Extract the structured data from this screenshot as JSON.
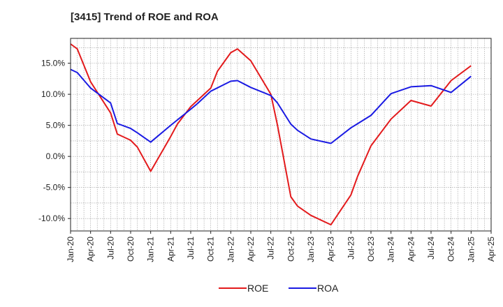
{
  "chart_data": {
    "type": "line",
    "title": "[3415]  Trend of ROE and ROA",
    "xlabel": "",
    "ylabel": "",
    "x": [
      "Jan-20",
      "Feb-20",
      "Mar-20",
      "Apr-20",
      "May-20",
      "Jun-20",
      "Jul-20",
      "Aug-20",
      "Sep-20",
      "Oct-20",
      "Nov-20",
      "Dec-20",
      "Jan-21",
      "Feb-21",
      "Mar-21",
      "Apr-21",
      "May-21",
      "Jun-21",
      "Jul-21",
      "Aug-21",
      "Sep-21",
      "Oct-21",
      "Nov-21",
      "Dec-21",
      "Jan-22",
      "Feb-22",
      "Mar-22",
      "Apr-22",
      "May-22",
      "Jun-22",
      "Jul-22",
      "Aug-22",
      "Sep-22",
      "Oct-22",
      "Nov-22",
      "Dec-22",
      "Jan-23",
      "Feb-23",
      "Mar-23",
      "Apr-23",
      "May-23",
      "Jun-23",
      "Jul-23",
      "Aug-23",
      "Sep-23",
      "Oct-23",
      "Nov-23",
      "Dec-23",
      "Jan-24",
      "Feb-24",
      "Mar-24",
      "Apr-24",
      "May-24",
      "Jun-24",
      "Jul-24",
      "Aug-24",
      "Sep-24",
      "Oct-24",
      "Nov-24",
      "Dec-24",
      "Jan-25"
    ],
    "x_tick_labels": [
      "Jan-20",
      "Apr-20",
      "Jul-20",
      "Oct-20",
      "Jan-21",
      "Apr-21",
      "Jul-21",
      "Oct-21",
      "Jan-22",
      "Apr-22",
      "Jul-22",
      "Oct-22",
      "Jan-23",
      "Apr-23",
      "Jul-23",
      "Oct-23",
      "Jan-24",
      "Apr-24",
      "Jul-24",
      "Oct-24",
      "Jan-25",
      "Apr-25"
    ],
    "x_range": [
      "Jan-20",
      "Apr-25"
    ],
    "y_tick_labels": [
      "-10.0%",
      "-5.0%",
      "0.0%",
      "5.0%",
      "10.0%",
      "15.0%"
    ],
    "y_ticks": [
      -10,
      -5,
      0,
      5,
      10,
      15
    ],
    "ylim": [
      -12,
      19
    ],
    "grid": true,
    "legend_position": "bottom-center",
    "series": [
      {
        "name": "ROE",
        "color": "#e31a1c",
        "points": [
          [
            "Jan-20",
            18.1
          ],
          [
            "Feb-20",
            17.3
          ],
          [
            "Apr-20",
            12.0
          ],
          [
            "Jul-20",
            7.0
          ],
          [
            "Aug-20",
            3.6
          ],
          [
            "Oct-20",
            2.6
          ],
          [
            "Nov-20",
            1.5
          ],
          [
            "Jan-21",
            -2.4
          ],
          [
            "Apr-21",
            3.2
          ],
          [
            "May-21",
            5.2
          ],
          [
            "Jul-21",
            8.0
          ],
          [
            "Oct-21",
            11.0
          ],
          [
            "Nov-21",
            13.7
          ],
          [
            "Jan-22",
            16.7
          ],
          [
            "Feb-22",
            17.3
          ],
          [
            "Apr-22",
            15.4
          ],
          [
            "Jul-22",
            10.0
          ],
          [
            "Aug-22",
            5.0
          ],
          [
            "Oct-22",
            -6.5
          ],
          [
            "Nov-22",
            -8.0
          ],
          [
            "Jan-23",
            -9.5
          ],
          [
            "Apr-23",
            -11.0
          ],
          [
            "Jul-23",
            -6.2
          ],
          [
            "Aug-23",
            -3.2
          ],
          [
            "Oct-23",
            1.7
          ],
          [
            "Jan-24",
            6.0
          ],
          [
            "Apr-24",
            9.0
          ],
          [
            "Jul-24",
            8.1
          ],
          [
            "Oct-24",
            12.2
          ],
          [
            "Jan-25",
            14.6
          ]
        ]
      },
      {
        "name": "ROA",
        "color": "#1a1ae3",
        "points": [
          [
            "Jan-20",
            14.0
          ],
          [
            "Feb-20",
            13.5
          ],
          [
            "Apr-20",
            11.0
          ],
          [
            "Jul-20",
            8.6
          ],
          [
            "Aug-20",
            5.3
          ],
          [
            "Oct-20",
            4.5
          ],
          [
            "Nov-20",
            3.8
          ],
          [
            "Jan-21",
            2.3
          ],
          [
            "Apr-21",
            5.0
          ],
          [
            "Jul-21",
            7.6
          ],
          [
            "Aug-21",
            8.5
          ],
          [
            "Oct-21",
            10.5
          ],
          [
            "Jan-22",
            12.1
          ],
          [
            "Feb-22",
            12.2
          ],
          [
            "Apr-22",
            11.1
          ],
          [
            "Jul-22",
            9.8
          ],
          [
            "Aug-22",
            8.6
          ],
          [
            "Oct-22",
            5.2
          ],
          [
            "Nov-22",
            4.2
          ],
          [
            "Jan-23",
            2.8
          ],
          [
            "Apr-23",
            2.1
          ],
          [
            "Jul-23",
            4.6
          ],
          [
            "Oct-23",
            6.6
          ],
          [
            "Jan-24",
            10.1
          ],
          [
            "Apr-24",
            11.2
          ],
          [
            "Jul-24",
            11.4
          ],
          [
            "Oct-24",
            10.3
          ],
          [
            "Jan-25",
            12.9
          ]
        ]
      }
    ]
  }
}
